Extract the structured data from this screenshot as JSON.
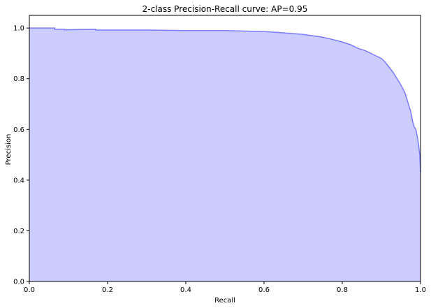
{
  "chart_data": {
    "type": "area",
    "title": "2-class Precision-Recall curve: AP=0.95",
    "xlabel": "Recall",
    "ylabel": "Precision",
    "xlim": [
      0.0,
      1.0
    ],
    "ylim": [
      0.0,
      1.05
    ],
    "xticks": [
      0.0,
      0.2,
      0.4,
      0.6,
      0.8,
      1.0
    ],
    "yticks": [
      0.0,
      0.2,
      0.4,
      0.6,
      0.8,
      1.0
    ],
    "xtick_labels": [
      "0.0",
      "0.2",
      "0.4",
      "0.6",
      "0.8",
      "1.0"
    ],
    "ytick_labels": [
      "0.0",
      "0.2",
      "0.4",
      "0.6",
      "0.8",
      "1.0"
    ],
    "grid": false,
    "colors": {
      "line": "#7b7bff",
      "fill": "#ccccff"
    },
    "series": [
      {
        "x": [
          0.0,
          0.065,
          0.065,
          0.09,
          0.09,
          0.17,
          0.17,
          0.3,
          0.4,
          0.5,
          0.55,
          0.6,
          0.64,
          0.7,
          0.75,
          0.78,
          0.8,
          0.82,
          0.84,
          0.86,
          0.88,
          0.9,
          0.91,
          0.92,
          0.93,
          0.94,
          0.95,
          0.96,
          0.965,
          0.97,
          0.975,
          0.98,
          0.984,
          0.988,
          0.992,
          0.995,
          0.998,
          1.0
        ],
        "y": [
          1.0,
          1.0,
          0.995,
          0.995,
          0.993,
          0.995,
          0.992,
          0.992,
          0.99,
          0.99,
          0.988,
          0.986,
          0.982,
          0.975,
          0.964,
          0.953,
          0.945,
          0.935,
          0.92,
          0.91,
          0.895,
          0.88,
          0.865,
          0.845,
          0.825,
          0.8,
          0.775,
          0.745,
          0.72,
          0.695,
          0.67,
          0.63,
          0.61,
          0.6,
          0.57,
          0.54,
          0.5,
          0.43
        ]
      }
    ]
  }
}
